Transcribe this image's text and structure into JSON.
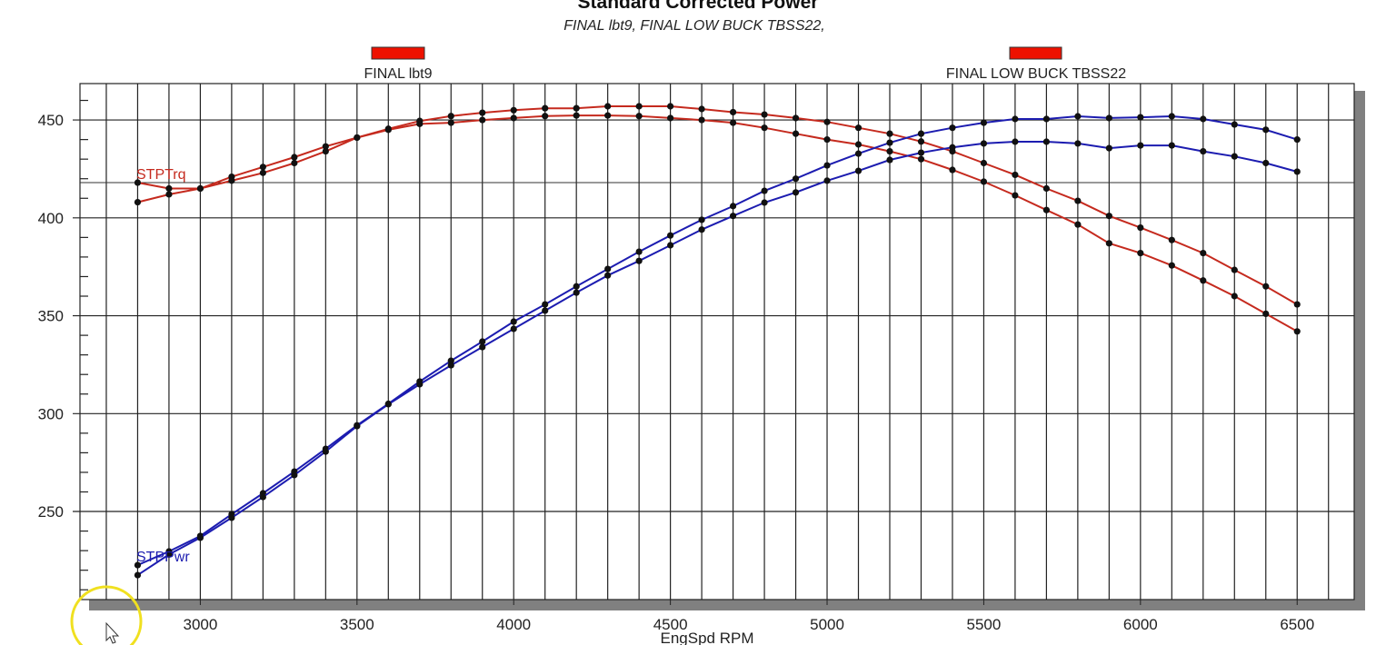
{
  "chart_data": {
    "type": "line",
    "title": "Standard Corrected Power",
    "subtitle": "FINAL lbt9, FINAL LOW BUCK TBSS22,",
    "xlabel": "EngSpd RPM",
    "ylabel": "",
    "xlim": [
      2616,
      6682
    ],
    "ylim": [
      205,
      468.6
    ],
    "x_ticks": [
      3000,
      3500,
      4000,
      4500,
      5000,
      5500,
      6000,
      6500
    ],
    "y_ticks": [
      250,
      300,
      350,
      400,
      450
    ],
    "grid": true,
    "cursor_line_y": 418,
    "legend": {
      "placement": "top",
      "entries": [
        "FINAL lbt9",
        "FINAL LOW BUCK TBSS22"
      ],
      "swatch_color": "#ee1100"
    },
    "curve_labels": {
      "torque": "STPTrq",
      "power": "STPPwr"
    },
    "colors": {
      "torque": "#c52a1e",
      "power": "#1c1cb0",
      "marker": "#111111"
    },
    "x": [
      2800,
      2900,
      3000,
      3100,
      3200,
      3300,
      3400,
      3500,
      3600,
      3700,
      3800,
      3900,
      4000,
      4100,
      4200,
      4300,
      4400,
      4500,
      4600,
      4700,
      4800,
      4900,
      5000,
      5100,
      5200,
      5300,
      5400,
      5500,
      5600,
      5700,
      5800,
      5900,
      6000,
      6100,
      6200,
      6300,
      6400,
      6500
    ],
    "series": [
      {
        "kind": "torque",
        "values": [
          418,
          415,
          415,
          421,
          426,
          431,
          436.5,
          441,
          445.5,
          449.5,
          452,
          453.7,
          455,
          456,
          456,
          457,
          457,
          457,
          455.6,
          454,
          452.8,
          451,
          449,
          446,
          443,
          439,
          434,
          428,
          422,
          415,
          408.7,
          401,
          395,
          388.7,
          382,
          373.4,
          365,
          355.8
        ]
      },
      {
        "kind": "torque",
        "values": [
          408,
          412,
          415,
          419,
          423,
          428,
          434,
          441,
          445,
          448,
          448.6,
          450,
          451,
          452,
          452.3,
          452.3,
          452,
          451,
          450,
          448.6,
          446,
          443,
          440,
          437.5,
          434,
          430,
          424.5,
          418.5,
          411.5,
          404,
          396.6,
          387,
          382,
          375.7,
          368,
          360,
          351,
          342
        ]
      },
      {
        "kind": "power",
        "values": [
          222.6,
          229.6,
          237.5,
          248.6,
          259.3,
          270.4,
          282,
          294,
          305,
          316.4,
          327,
          336.8,
          347,
          355.8,
          365,
          373.9,
          382.7,
          391,
          399,
          406,
          413.8,
          420,
          426.8,
          432.8,
          438.4,
          443,
          446,
          448.6,
          450.5,
          450.5,
          451.9,
          451,
          451.4,
          451.9,
          450.5,
          447.7,
          445,
          440
        ]
      },
      {
        "kind": "power",
        "values": [
          217.5,
          228,
          236.6,
          246.8,
          257.4,
          268.6,
          280.6,
          293.6,
          304.8,
          315,
          324.7,
          334,
          343.3,
          352.6,
          361.8,
          370.6,
          378,
          386,
          394,
          401,
          407.8,
          413,
          419,
          424,
          429.6,
          433.3,
          436,
          438,
          438.9,
          438.9,
          438,
          435.6,
          437,
          437,
          434,
          431.4,
          428,
          423.6
        ]
      }
    ]
  }
}
